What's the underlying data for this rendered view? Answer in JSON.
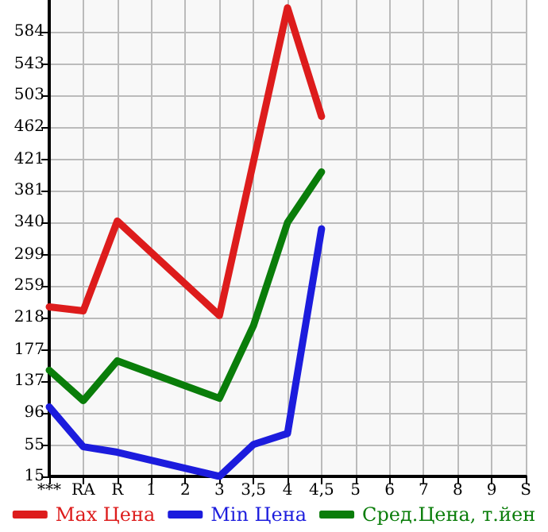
{
  "chart_data": {
    "type": "line",
    "categories": [
      "***",
      "RA",
      "R",
      "1",
      "2",
      "3",
      "3,5",
      "4",
      "4,5",
      "5",
      "6",
      "7",
      "8",
      "9",
      "S"
    ],
    "series": [
      {
        "name": "Max Цена",
        "color": "#dd1c1c",
        "values": [
          232,
          227,
          342,
          null,
          null,
          221,
          null,
          615,
          476,
          null,
          null,
          null,
          null,
          null,
          null
        ]
      },
      {
        "name": "Min Цена",
        "color": "#1c1cdd",
        "values": [
          104,
          53,
          46,
          null,
          null,
          15,
          56,
          70,
          332,
          null,
          null,
          null,
          null,
          null,
          null
        ]
      },
      {
        "name": "Сред.Цена, т.йен",
        "color": "#0a7d0a",
        "values": [
          151,
          112,
          163,
          null,
          null,
          115,
          208,
          340,
          405,
          null,
          null,
          null,
          null,
          null,
          null
        ]
      }
    ],
    "ylim": [
      15,
      625
    ],
    "yticks": [
      15,
      55,
      96,
      137,
      177,
      218,
      259,
      299,
      340,
      381,
      421,
      462,
      503,
      543,
      584
    ],
    "grid": true,
    "legend": "bottom",
    "marker": "none",
    "line_style": "solid"
  }
}
